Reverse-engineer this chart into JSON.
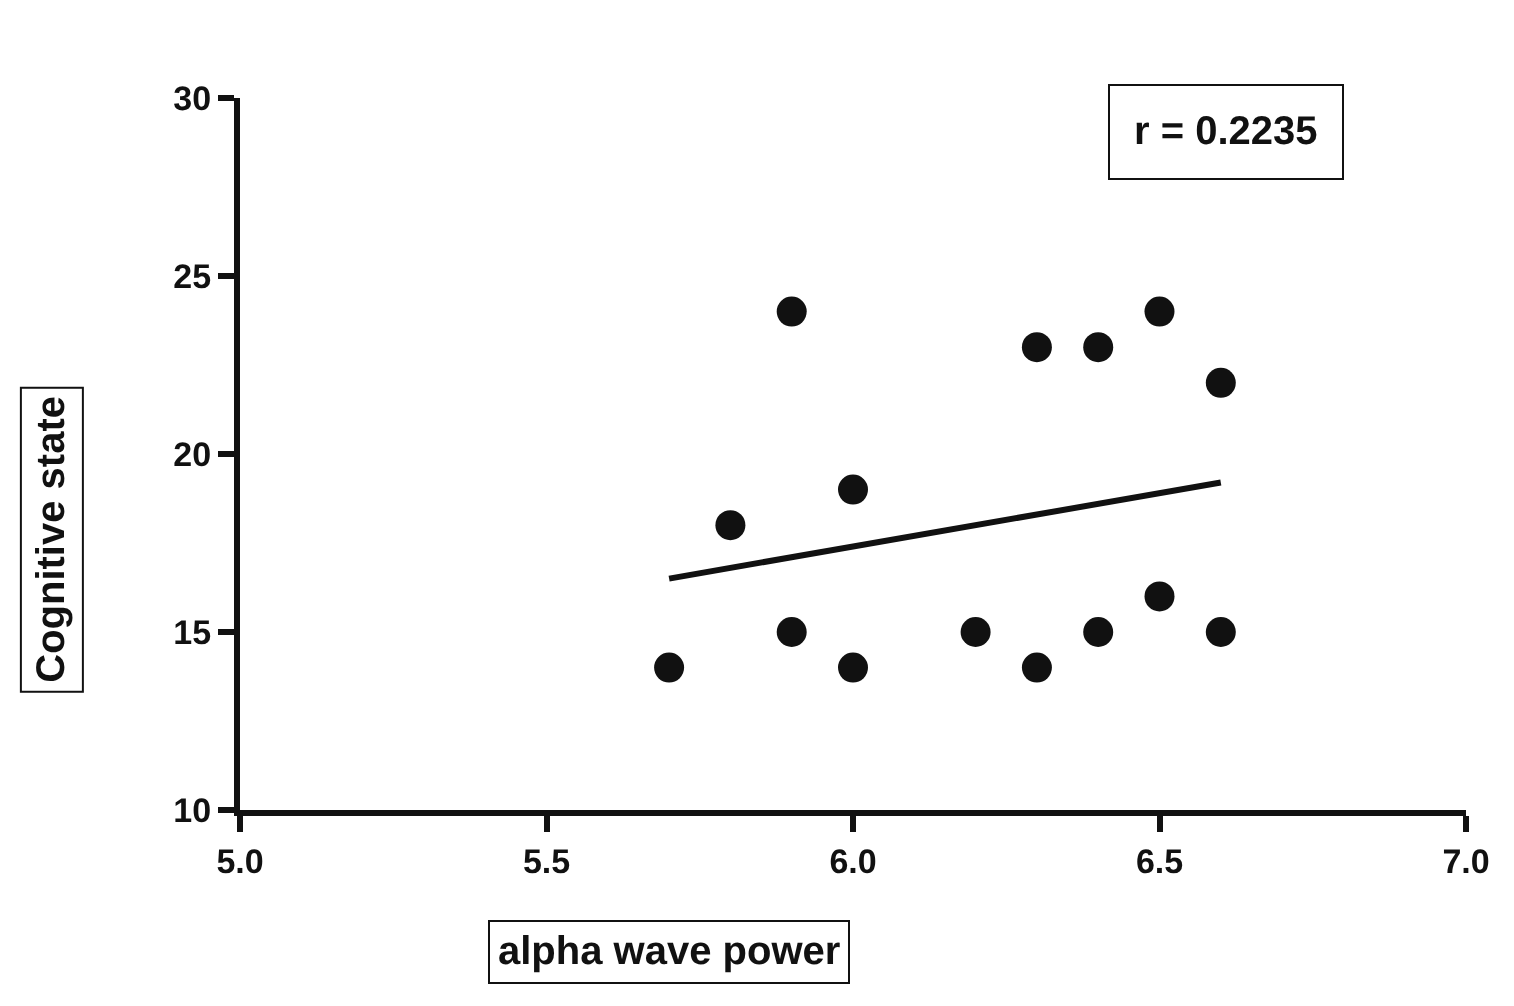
{
  "chart_data": {
    "type": "scatter",
    "xlabel": "alpha wave power",
    "ylabel": "Cognitive state",
    "annotations": [
      "r = 0.2235"
    ],
    "series": [
      {
        "color": "#111111",
        "marker": "circle",
        "x": [
          5.7,
          5.8,
          5.9,
          5.9,
          6.0,
          6.0,
          6.2,
          6.3,
          6.3,
          6.4,
          6.4,
          6.5,
          6.5,
          6.6,
          6.6
        ],
        "values": [
          14,
          18,
          24,
          15,
          19,
          14,
          15,
          23,
          14,
          23,
          15,
          24,
          16,
          22,
          15
        ]
      },
      {
        "type": "line",
        "color": "#111111",
        "x": [
          5.7,
          6.6
        ],
        "values": [
          16.5,
          19.2
        ]
      }
    ],
    "xlim": [
      5.0,
      7.0
    ],
    "xticks": [
      {
        "value": 5.0,
        "label": "5.0"
      },
      {
        "value": 5.5,
        "label": "5.5"
      },
      {
        "value": 6.0,
        "label": "6.0"
      },
      {
        "value": 6.5,
        "label": "6.5"
      },
      {
        "value": 7.0,
        "label": "7.0"
      }
    ],
    "ylim": [
      10,
      30
    ],
    "yticks": [
      10,
      15,
      20,
      25,
      30
    ],
    "grid": false,
    "legend": false
  }
}
